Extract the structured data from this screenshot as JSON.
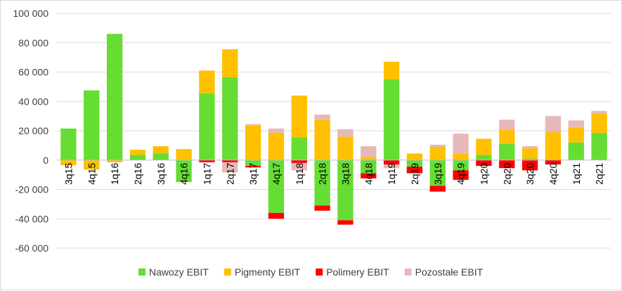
{
  "chart_data": {
    "type": "bar",
    "stacked": true,
    "categories": [
      "3q15",
      "4q15",
      "1q16",
      "2q16",
      "3q16",
      "4q16",
      "1q17",
      "2q17",
      "3q17",
      "4q17",
      "1q18",
      "2q18",
      "3q18",
      "4q18",
      "1q19",
      "2q19",
      "3q19",
      "4q19",
      "1q20",
      "2q20",
      "3q20",
      "4q20",
      "1q21",
      "2q21"
    ],
    "series": [
      {
        "name": "Nawozy EBIT",
        "color": "#66dd33",
        "values": [
          21500,
          47500,
          86000,
          3500,
          4500,
          -15000,
          45500,
          56500,
          -4000,
          -36000,
          15500,
          -31000,
          -41000,
          -9000,
          55000,
          -4500,
          -17500,
          -7000,
          3500,
          11000,
          1000,
          0,
          12000,
          18500
        ]
      },
      {
        "name": "Pigmenty EBIT",
        "color": "#ffc000",
        "values": [
          -3500,
          -6500,
          -1500,
          3500,
          5000,
          7500,
          15500,
          19000,
          23500,
          18500,
          28500,
          27500,
          16000,
          2000,
          12000,
          4500,
          9000,
          4500,
          11000,
          9500,
          7000,
          19000,
          10000,
          13000
        ]
      },
      {
        "name": "Polimery EBIT",
        "color": "#ff0000",
        "values": [
          0,
          0,
          0,
          0,
          0,
          0,
          -1500,
          -1500,
          -1000,
          -4000,
          -2000,
          -3500,
          -3000,
          -3500,
          -3000,
          -4500,
          -4000,
          -6500,
          -4000,
          -5500,
          -7000,
          -3000,
          0,
          0
        ]
      },
      {
        "name": "Pozostałe EBIT",
        "color": "#e6b9b8",
        "values": [
          0,
          0,
          0,
          0,
          0,
          0,
          0,
          -7000,
          1000,
          3000,
          -5000,
          3500,
          5000,
          7500,
          -2500,
          0,
          1500,
          13500,
          0,
          7000,
          1500,
          11000,
          5000,
          2000
        ]
      }
    ],
    "ylim": [
      -60000,
      100000
    ],
    "yticks": [
      -60000,
      -40000,
      -20000,
      0,
      20000,
      40000,
      60000,
      80000,
      100000
    ],
    "ytick_labels": [
      "-60 000",
      "-40 000",
      "-20 000",
      "0",
      "20 000",
      "40 000",
      "60 000",
      "80 000",
      "100 000"
    ],
    "grid": true,
    "legend_position": "bottom"
  }
}
